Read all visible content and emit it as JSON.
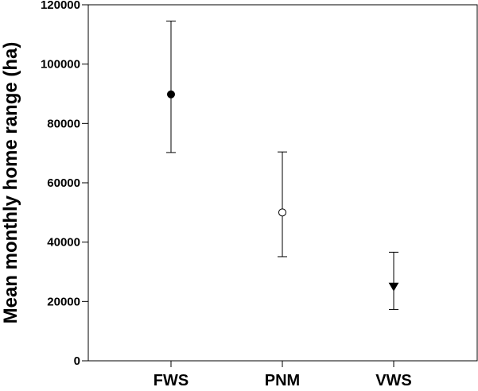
{
  "chart_data": {
    "type": "scatter",
    "title": "",
    "xlabel": "",
    "ylabel": "Mean monthly home range (ha)",
    "ylim": [
      0,
      120000
    ],
    "yticks": [
      0,
      20000,
      40000,
      60000,
      80000,
      100000,
      120000
    ],
    "yticklabels": [
      "0",
      "20000",
      "40000",
      "60000",
      "80000",
      "100000",
      "120000"
    ],
    "grid": false,
    "legend": "none",
    "categories": [
      "FWS",
      "PNM",
      "VWS"
    ],
    "points": [
      {
        "category": "FWS",
        "mean": 89800,
        "lower": 70200,
        "upper": 114500,
        "marker": "filled-circle"
      },
      {
        "category": "PNM",
        "mean": 50000,
        "lower": 35100,
        "upper": 70400,
        "marker": "open-circle"
      },
      {
        "category": "VWS",
        "mean": 25000,
        "lower": 17300,
        "upper": 36600,
        "marker": "filled-down-triangle"
      }
    ],
    "colors": {
      "marker": "#000000",
      "axis": "#000000",
      "background": "#ffffff"
    }
  }
}
